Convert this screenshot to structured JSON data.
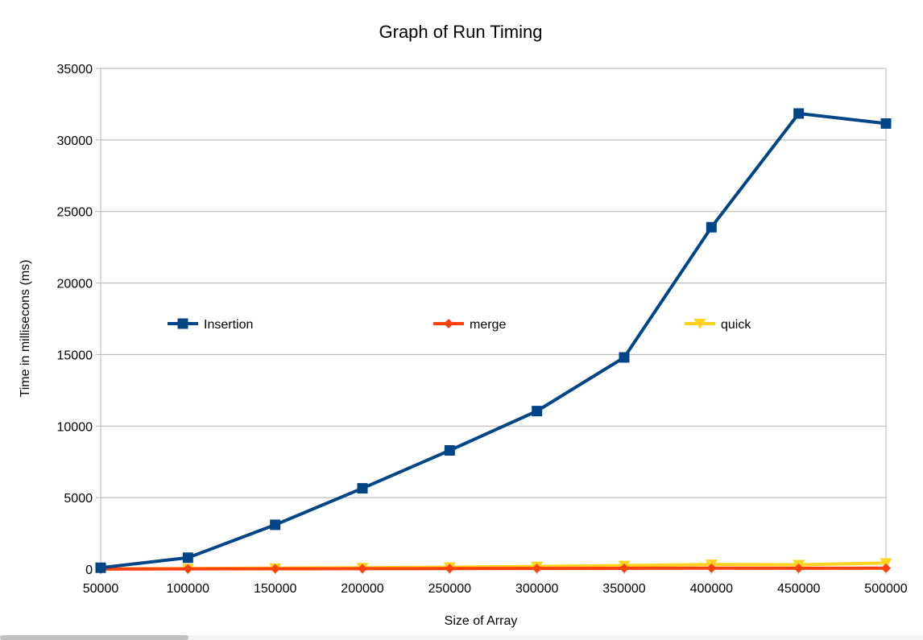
{
  "chart_data": {
    "type": "line",
    "title": "Graph of Run Timing",
    "xlabel": "Size of Array",
    "ylabel": "Time in millisecons (ms)",
    "x": [
      50000,
      100000,
      150000,
      200000,
      250000,
      300000,
      350000,
      400000,
      450000,
      500000
    ],
    "ylim": [
      0,
      35000
    ],
    "yticks": [
      0,
      5000,
      10000,
      15000,
      20000,
      25000,
      30000,
      35000
    ],
    "grid": true,
    "legend_position": "inside-middle",
    "series": [
      {
        "name": "Insertion",
        "color": "#004586",
        "marker": "square",
        "values": [
          100,
          800,
          3100,
          5650,
          8300,
          11050,
          14800,
          23900,
          31850,
          31150
        ]
      },
      {
        "name": "merge",
        "color": "#ff420e",
        "marker": "diamond",
        "values": [
          10,
          20,
          25,
          35,
          40,
          50,
          60,
          70,
          60,
          70
        ]
      },
      {
        "name": "quick",
        "color": "#ffd320",
        "marker": "triangle-down",
        "values": [
          20,
          40,
          70,
          100,
          140,
          190,
          250,
          330,
          310,
          430
        ]
      }
    ]
  }
}
